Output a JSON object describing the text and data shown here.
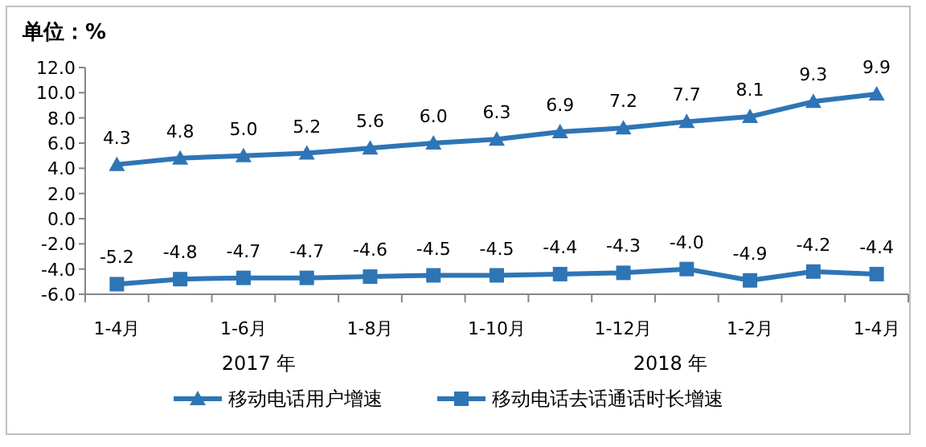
{
  "chart_data": {
    "type": "line",
    "title": "单位：%",
    "categories": [
      "1-4月",
      null,
      "1-6月",
      null,
      "1-8月",
      null,
      "1-10月",
      null,
      "1-12月",
      null,
      "1-2月",
      null,
      "1-4月"
    ],
    "series": [
      {
        "name": "移动电话用户增速",
        "color": "#2e75b6",
        "marker": "triangle",
        "values": [
          4.3,
          4.8,
          5.0,
          5.2,
          5.6,
          6.0,
          6.3,
          6.9,
          7.2,
          7.7,
          8.1,
          9.3,
          9.9
        ],
        "value_labels": [
          "4.3",
          "4.8",
          "5.0",
          "5.2",
          "5.6",
          "6.0",
          "6.3",
          "6.9",
          "7.2",
          "7.7",
          "8.1",
          "9.3",
          "9.9"
        ]
      },
      {
        "name": "移动电话去话通话时长增速",
        "color": "#2e75b6",
        "marker": "square",
        "values": [
          -5.2,
          -4.8,
          -4.7,
          -4.7,
          -4.6,
          -4.5,
          -4.5,
          -4.4,
          -4.3,
          -4.0,
          -4.9,
          -4.2,
          -4.4
        ],
        "value_labels": [
          "-5.2",
          "-4.8",
          "-4.7",
          "-4.7",
          "-4.6",
          "-4.5",
          "-4.5",
          "-4.4",
          "-4.3",
          "-4.0",
          "-4.9",
          "-4.2",
          "-4.4"
        ]
      }
    ],
    "ylim": [
      -6,
      12
    ],
    "yticks": [
      {
        "value": -6,
        "label": "-6.0"
      },
      {
        "value": -4,
        "label": "-4.0"
      },
      {
        "value": -2,
        "label": "-2.0"
      },
      {
        "value": 0,
        "label": "0.0"
      },
      {
        "value": 2,
        "label": "2.0"
      },
      {
        "value": 4,
        "label": "4.0"
      },
      {
        "value": 6,
        "label": "6.0"
      },
      {
        "value": 8,
        "label": "8.0"
      },
      {
        "value": 10,
        "label": "10.0"
      },
      {
        "value": 12,
        "label": "12.0"
      }
    ],
    "legend": "bottom",
    "line_style": "solid",
    "annotations": [
      "2017 年",
      "2018 年"
    ]
  }
}
